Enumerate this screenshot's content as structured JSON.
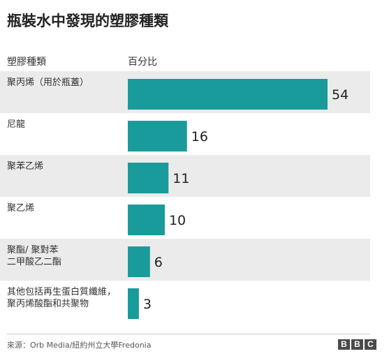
{
  "title": "瓶裝水中發現的塑膠種類",
  "header": {
    "category_label": "塑膠種類",
    "value_label": "百分比"
  },
  "chart_data": {
    "type": "bar",
    "orientation": "horizontal",
    "title": "瓶裝水中發現的塑膠種類",
    "xlabel": "百分比",
    "ylabel": "塑膠種類",
    "categories": [
      [
        "聚丙烯（用於瓶蓋）"
      ],
      [
        "尼龍"
      ],
      [
        "聚苯乙烯"
      ],
      [
        "聚乙烯"
      ],
      [
        "聚酯/ 聚對苯",
        "二甲酸乙二酯"
      ],
      [
        "其他包括再生蛋白質纖維，",
        "聚丙烯酸酯和共聚物"
      ]
    ],
    "values": [
      54,
      16,
      11,
      10,
      6,
      3
    ],
    "xlim": [
      0,
      54
    ],
    "grid": false,
    "bar_color": "#1a9b9b",
    "row_shading": "#ebebeb"
  },
  "source": "來源：Orb Media/紐約州立大學Fredonia",
  "logo": [
    "B",
    "B",
    "C"
  ]
}
